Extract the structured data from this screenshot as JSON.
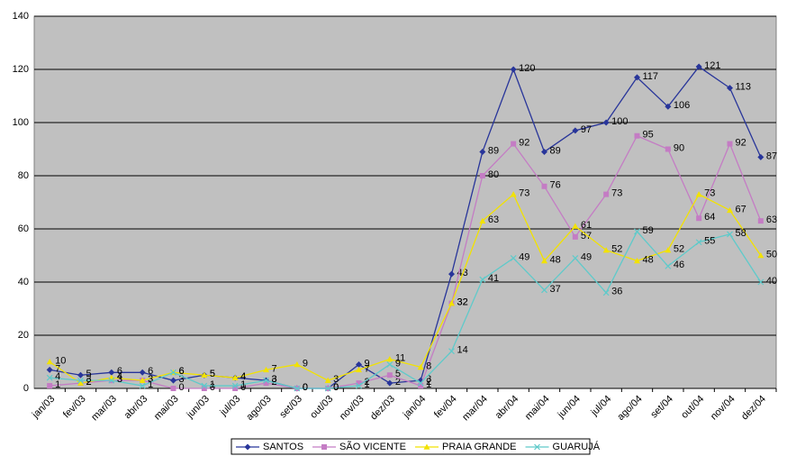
{
  "chart_data": {
    "type": "line",
    "categories": [
      "jan/03",
      "fev/03",
      "mar/03",
      "abr/03",
      "mai/03",
      "jun/03",
      "jul/03",
      "ago/03",
      "set/03",
      "out/03",
      "nov/03",
      "dez/03",
      "jan/04",
      "fev/04",
      "mar/04",
      "abr/04",
      "mai/04",
      "jun/04",
      "jul/04",
      "ago/04",
      "set/04",
      "out/04",
      "nov/04",
      "dez/04"
    ],
    "series": [
      {
        "name": "SANTOS",
        "color": "#28359a",
        "marker": "diamond",
        "values": [
          7,
          5,
          6,
          6,
          3,
          5,
          4,
          3,
          0,
          0,
          9,
          2,
          3,
          43,
          89,
          120,
          89,
          97,
          100,
          117,
          106,
          121,
          113,
          87
        ]
      },
      {
        "name": "SÃO VICENTE",
        "color": "#c47cc4",
        "marker": "square",
        "values": [
          1,
          2,
          3,
          3,
          0,
          0,
          0,
          2,
          0,
          0,
          2,
          5,
          1,
          32,
          80,
          92,
          76,
          57,
          73,
          95,
          90,
          64,
          92,
          63
        ]
      },
      {
        "name": "PRAIA GRANDE",
        "color": "#f2e200",
        "marker": "triangle",
        "values": [
          10,
          2,
          4,
          3,
          6,
          5,
          4,
          7,
          9,
          3,
          7,
          11,
          8,
          32,
          63,
          73,
          48,
          61,
          52,
          48,
          52,
          73,
          67,
          50
        ]
      },
      {
        "name": "GUARUJÁ",
        "color": "#5fcaca",
        "marker": "x",
        "values": [
          4,
          3,
          3,
          1,
          6,
          1,
          1,
          3,
          0,
          0,
          1,
          9,
          2,
          14,
          41,
          49,
          37,
          49,
          36,
          59,
          46,
          55,
          58,
          40
        ]
      }
    ],
    "ylim": [
      0,
      140
    ],
    "yticks": [
      0,
      20,
      40,
      60,
      80,
      100,
      120,
      140
    ],
    "grid": true,
    "legend": "bottom"
  }
}
